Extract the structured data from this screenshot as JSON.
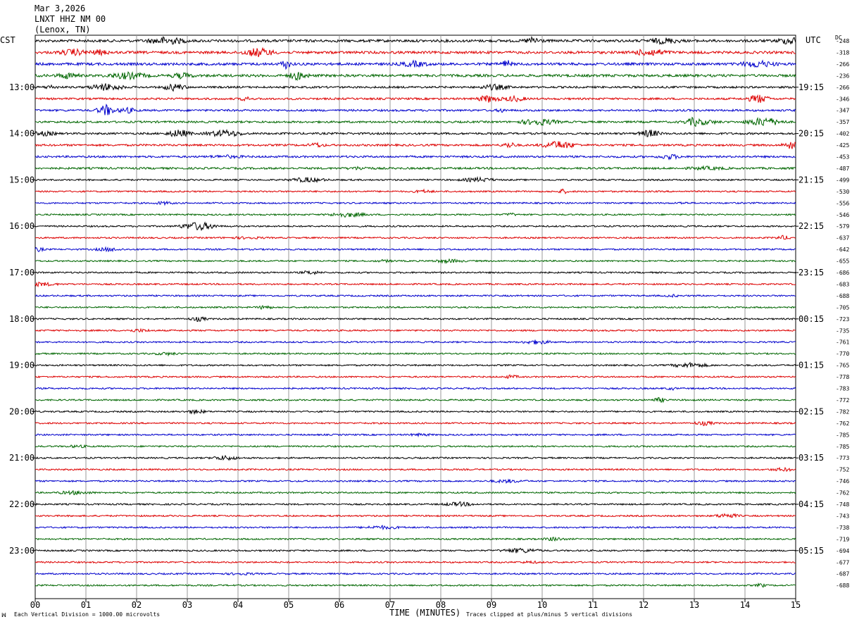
{
  "header": {
    "date": "Mar 3,2026",
    "station": "LNXT HHZ NM 00",
    "location": "(Lenox, TN)"
  },
  "left_tz": "CST",
  "right_tz": "UTC",
  "dc_label": "DC",
  "x_axis_title": "TIME (MINUTES)",
  "footer_left": "Each Vertical Division = 1000.00 microvolts",
  "footer_right": "Traces clipped at plus/minus 5 vertical divisions",
  "colors": {
    "trace_cycle": [
      "#000000",
      "#dd0000",
      "#0000cc",
      "#006600"
    ],
    "grid": "#999999"
  },
  "chart_data": {
    "type": "line",
    "title": "",
    "xlabel": "TIME (MINUTES)",
    "ylabel": "",
    "xlim": [
      0,
      15
    ],
    "x_ticks": [
      "00",
      "01",
      "02",
      "03",
      "04",
      "05",
      "06",
      "07",
      "08",
      "09",
      "10",
      "11",
      "12",
      "13",
      "14",
      "15"
    ],
    "left_hour_labels": [
      "13:00",
      "14:00",
      "15:00",
      "16:00",
      "17:00",
      "18:00",
      "19:00",
      "20:00",
      "21:00",
      "22:00",
      "23:00"
    ],
    "right_hour_labels": [
      "19:15",
      "20:15",
      "21:15",
      "22:15",
      "23:15",
      "00:15",
      "01:15",
      "02:15",
      "03:15",
      "04:15",
      "05:15"
    ],
    "trace_count": 48,
    "dc_offsets": [
      -248,
      -318,
      -266,
      -236,
      -266,
      -346,
      -347,
      -357,
      -402,
      -425,
      -453,
      -487,
      -499,
      -530,
      -556,
      -546,
      -579,
      -637,
      -642,
      -655,
      -686,
      -683,
      -688,
      -705,
      -723,
      -735,
      -761,
      -770,
      -765,
      -778,
      -783,
      -772,
      -782,
      -762,
      -785,
      -785,
      -773,
      -752,
      -746,
      -762,
      -748,
      -743,
      -738,
      -719,
      -694,
      -677,
      -687,
      -688
    ],
    "grid": true
  }
}
